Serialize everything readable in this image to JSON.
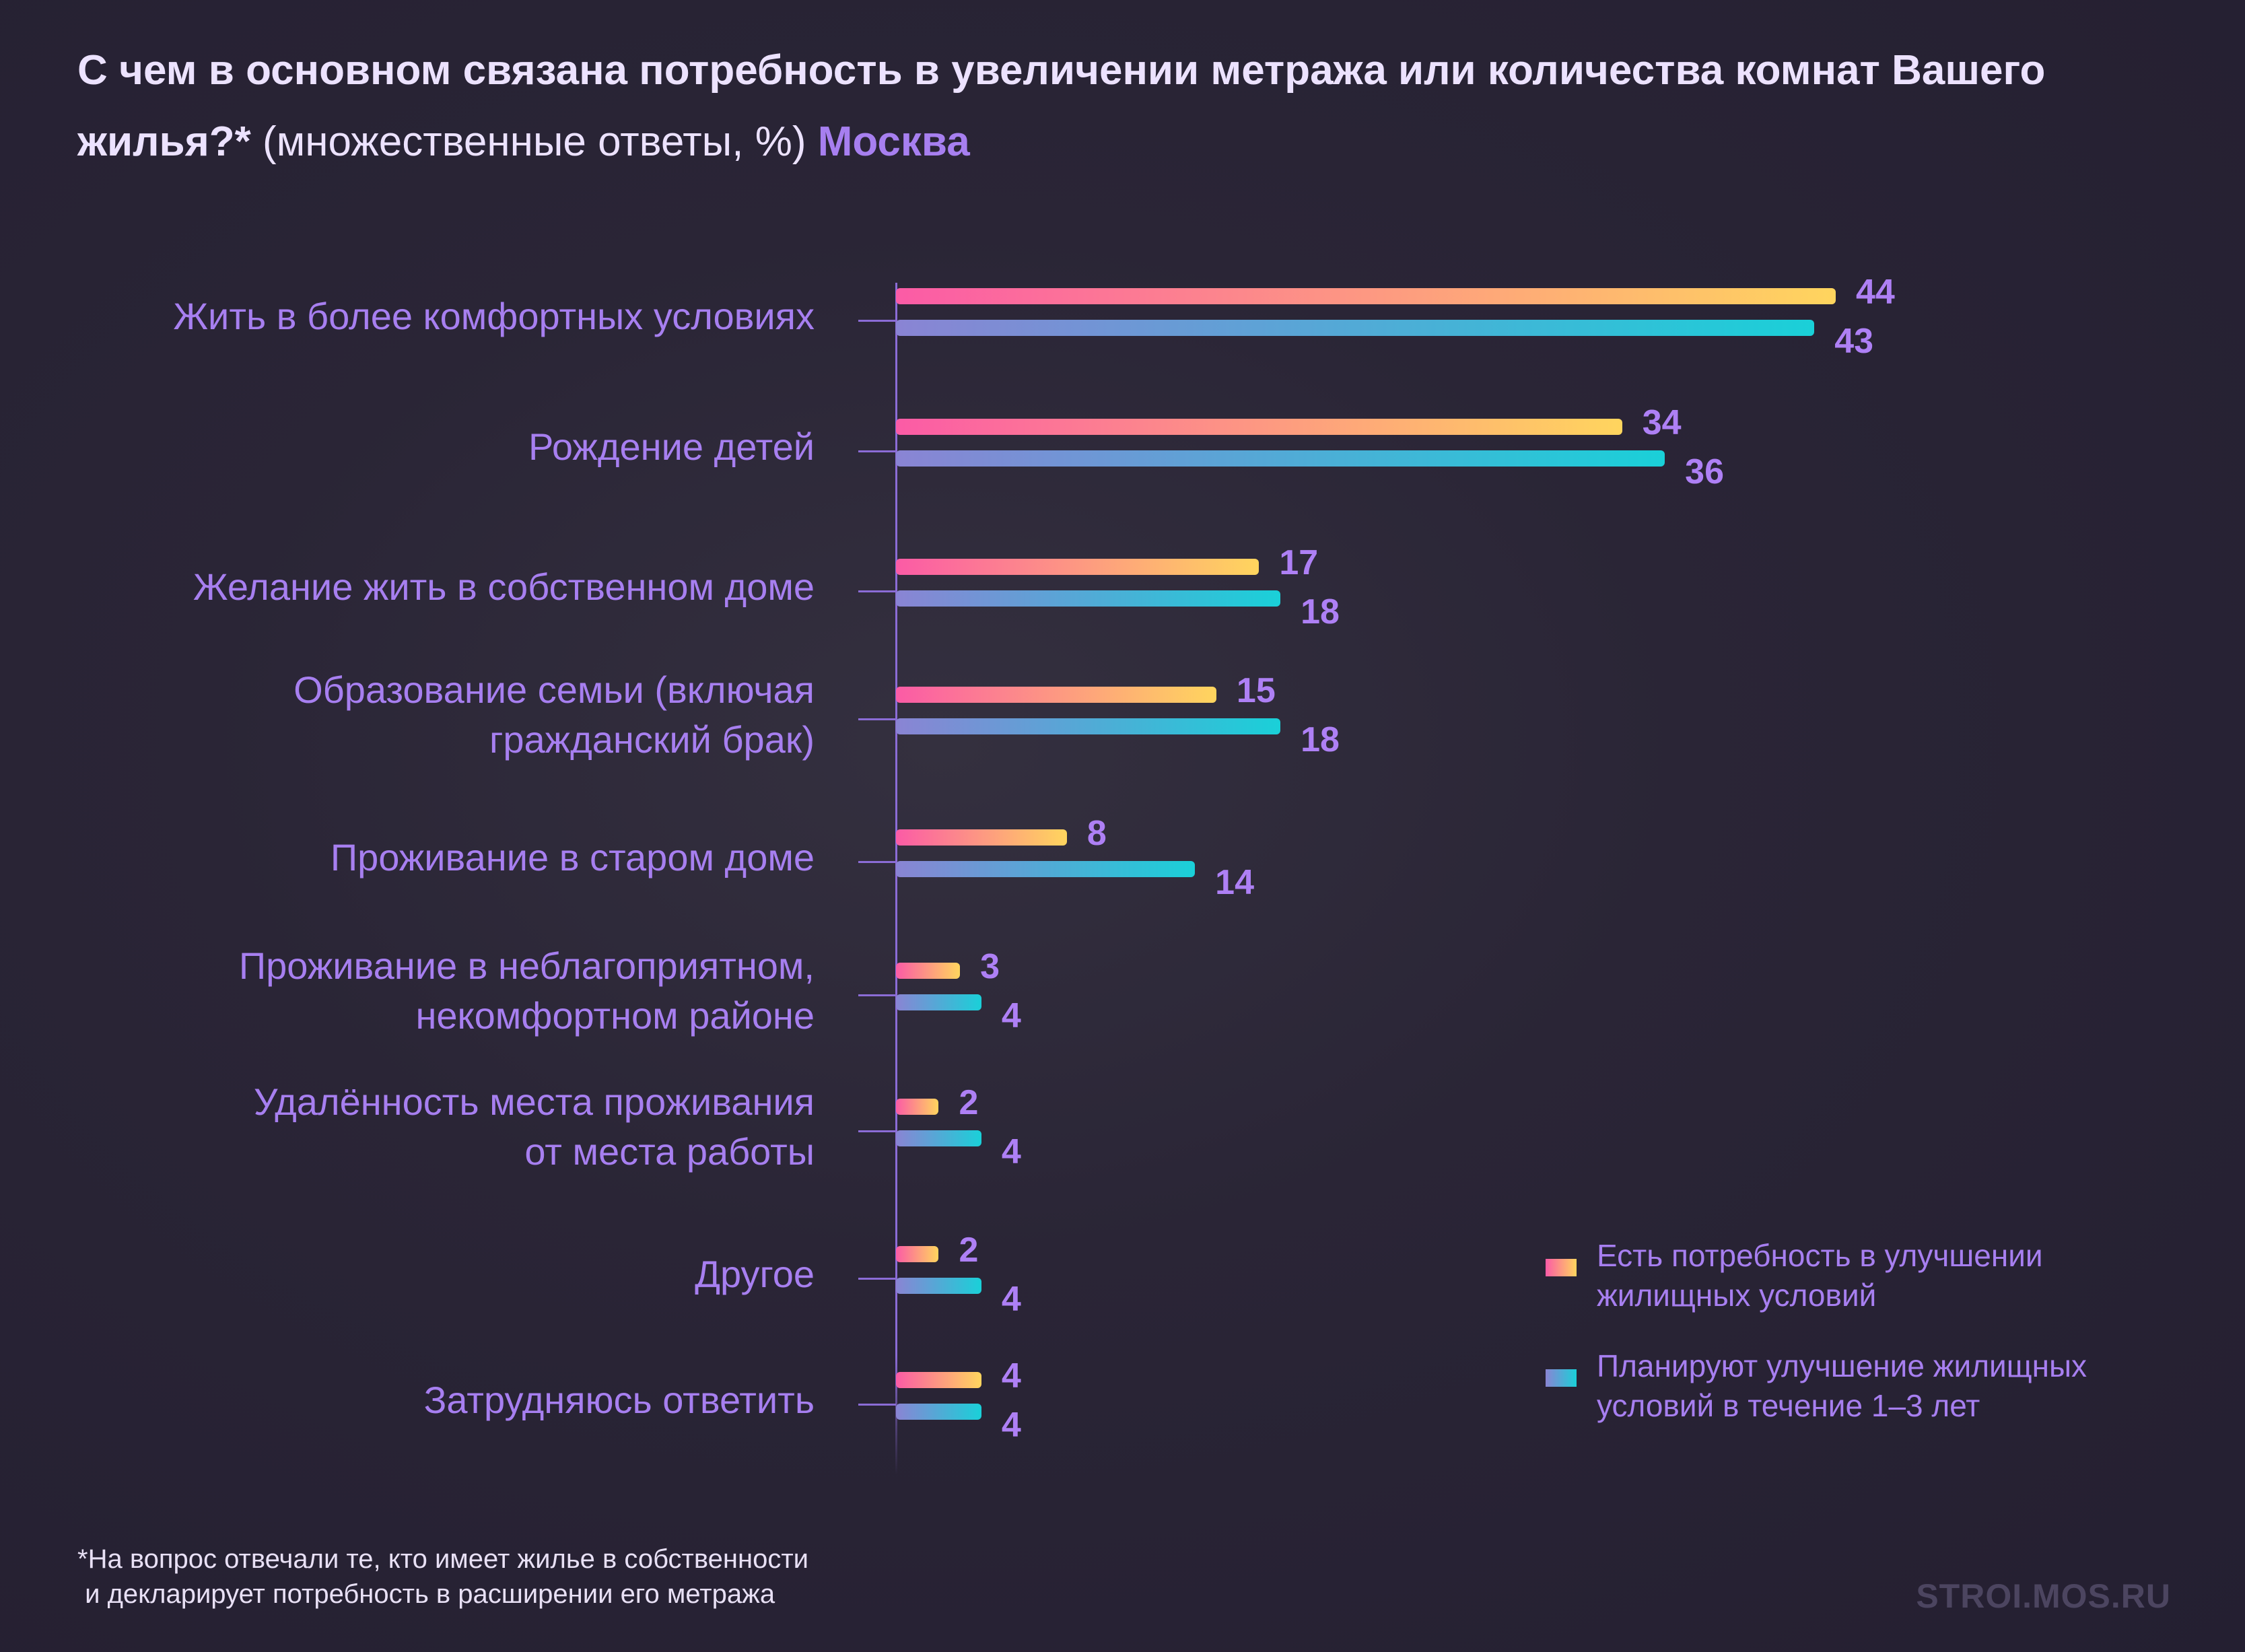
{
  "title": {
    "bold": "С чем в основном связана потребность в увеличении метража или количества комнат Вашего жилья?*",
    "subtitle": "(множественные ответы, %)",
    "city": "Москва"
  },
  "chart_data": {
    "type": "bar",
    "orientation": "horizontal",
    "title": "С чем в основном связана потребность в увеличении метража или количества комнат Вашего жилья?* (множественные ответы, %) Москва",
    "xlabel": "",
    "ylabel": "",
    "unit": "%",
    "categories": [
      "Жить в более комфортных условиях",
      "Рождение детей",
      "Желание жить в собственном доме",
      "Образование семьи (включая гражданский брак)",
      "Проживание в старом доме",
      "Проживание в неблагоприятном, некомфортном районе",
      "Удалённость места проживания от места работы",
      "Другое",
      "Затрудняюсь ответить"
    ],
    "category_lines": [
      [
        "Жить в более комфортных условиях"
      ],
      [
        "Рождение детей"
      ],
      [
        "Желание жить в собственном доме"
      ],
      [
        "Образование семьи (включая",
        "гражданский брак)"
      ],
      [
        "Проживание в старом доме"
      ],
      [
        "Проживание в неблагоприятном,",
        "некомфортном районе"
      ],
      [
        "Удалённость места проживания",
        "от места работы"
      ],
      [
        "Другое"
      ],
      [
        "Затрудняюсь ответить"
      ]
    ],
    "series": [
      {
        "name": "Есть потребность в улучшении жилищных условий",
        "values": [
          44,
          34,
          17,
          15,
          8,
          3,
          2,
          2,
          4
        ],
        "colors": [
          "#fb5ba6",
          "#ffd55e"
        ]
      },
      {
        "name": "Планируют улучшение жилищных условий в течение 1–3 лет",
        "values": [
          43,
          36,
          18,
          18,
          14,
          4,
          4,
          4,
          4
        ],
        "colors": [
          "#8a84d4",
          "#1ad0d8"
        ]
      }
    ],
    "xlim": [
      0,
      44
    ],
    "grid": false,
    "legend_position": "bottom-right",
    "data_labels": true
  },
  "footnote": "*На вопрос отвечали те, кто имеет жилье в собственности\n и декларирует потребность в расширении его метража",
  "watermark": "STROI.MOS.RU"
}
